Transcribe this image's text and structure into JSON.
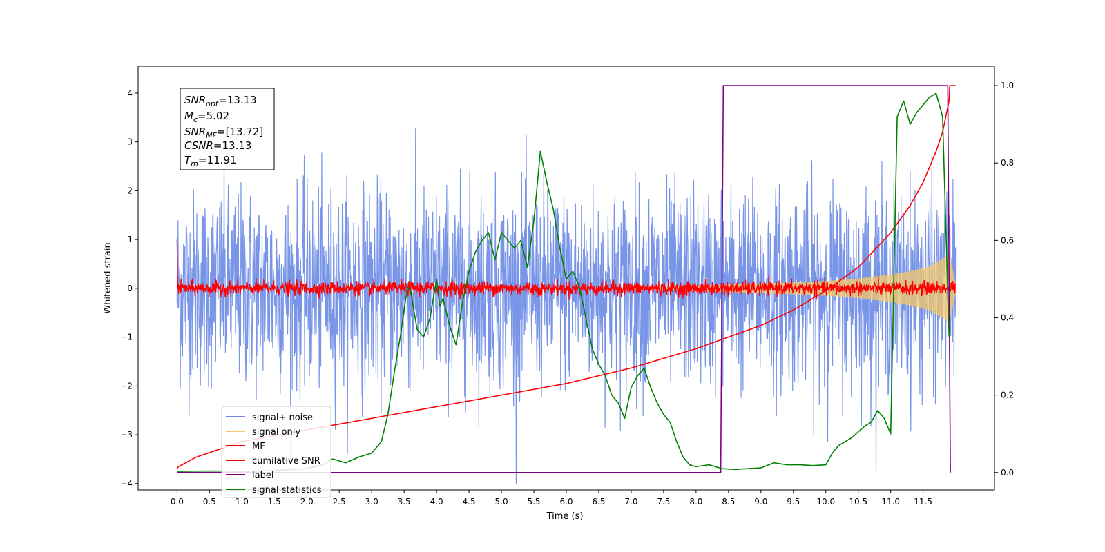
{
  "chart_data": {
    "type": "line",
    "xlabel": "Time (s)",
    "ylabel": "Whitened strain",
    "xlim": [
      -0.6,
      12.6
    ],
    "ylim": [
      -4.13,
      4.55
    ],
    "y2lim": [
      -0.045,
      1.05
    ],
    "x_ticks": [
      "0.0",
      "0.5",
      "1.0",
      "1.5",
      "2.0",
      "2.5",
      "3.0",
      "3.5",
      "4.0",
      "4.5",
      "5.0",
      "5.5",
      "6.0",
      "6.5",
      "7.0",
      "7.5",
      "8.0",
      "8.5",
      "9.0",
      "9.5",
      "10.0",
      "10.5",
      "11.0",
      "11.5"
    ],
    "y_ticks": [
      "4",
      "3",
      "2",
      "1",
      "0",
      "−1",
      "−2",
      "−3",
      "−4"
    ],
    "y2_ticks": [
      "1.0",
      "0.8",
      "0.6",
      "0.4",
      "0.2",
      "0.0"
    ],
    "info_box": {
      "snr_opt": {
        "main": "SNR",
        "sub": "opt",
        "value": "=13.13"
      },
      "mc": {
        "main": "M",
        "sub": "c",
        "value": "=5.02"
      },
      "snr_mf": {
        "main": "SNR",
        "sub": "MF",
        "value": "=[13.72]"
      },
      "csnr": {
        "main": "CSNR",
        "sub": "",
        "value": "=13.13"
      },
      "tm": {
        "main": "T",
        "sub": "m",
        "value": "=11.91"
      }
    },
    "legend": {
      "placement": "lower-left",
      "entries": [
        {
          "label": "signal+ noise",
          "color": "#6a8ae6"
        },
        {
          "label": "signal only",
          "color": "#f5c969"
        },
        {
          "label": "MF",
          "color": "#ff0000"
        },
        {
          "label": "cumilative SNR",
          "color": "#ff0000"
        },
        {
          "label": "label",
          "color": "#800080"
        },
        {
          "label": "signal statistics",
          "color": "#008000"
        }
      ]
    },
    "series": [
      {
        "name": "signal+ noise",
        "axis": "left",
        "color": "#6a8ae6",
        "note": "approximately Gaussian whitened noise, unit variance, sampled over 0.0–12.0 s",
        "x_range": [
          0.0,
          12.0
        ],
        "spread": 1.0
      },
      {
        "name": "signal only",
        "axis": "left",
        "color": "#f5c969",
        "note": "chirp envelope growing toward merger",
        "envelope_x": [
          7.5,
          8.0,
          8.5,
          9.0,
          9.5,
          10.0,
          10.5,
          11.0,
          11.3,
          11.6,
          11.8,
          11.9,
          11.95,
          12.0
        ],
        "envelope_y": [
          0.03,
          0.05,
          0.08,
          0.1,
          0.12,
          0.15,
          0.2,
          0.28,
          0.35,
          0.45,
          0.6,
          0.7,
          0.4,
          0.1
        ]
      },
      {
        "name": "MF",
        "axis": "left",
        "color": "#ff0000",
        "note": "matched-filter output, narrow band around 0",
        "x_range": [
          0.0,
          12.0
        ],
        "spread": 0.07
      },
      {
        "name": "cumilative SNR",
        "axis": "right",
        "color": "#ff0000",
        "x": [
          0.0,
          0.02,
          0.3,
          1.0,
          2.0,
          3.0,
          4.0,
          5.0,
          6.0,
          7.0,
          8.0,
          8.5,
          9.0,
          9.5,
          10.0,
          10.5,
          11.0,
          11.3,
          11.5,
          11.7,
          11.8,
          11.85,
          11.9,
          11.91,
          12.0
        ],
        "y": [
          0.01,
          0.015,
          0.04,
          0.08,
          0.11,
          0.14,
          0.17,
          0.2,
          0.23,
          0.27,
          0.32,
          0.35,
          0.38,
          0.42,
          0.47,
          0.53,
          0.62,
          0.69,
          0.75,
          0.83,
          0.88,
          0.92,
          0.96,
          1.0,
          1.0
        ]
      },
      {
        "name": "label",
        "axis": "right",
        "color": "#800080",
        "x": [
          0.0,
          8.38,
          8.42,
          11.88,
          11.92
        ],
        "y": [
          0.0,
          0.0,
          1.0,
          1.0,
          0.0
        ]
      },
      {
        "name": "signal statistics",
        "axis": "right",
        "color": "#008000",
        "x": [
          0.0,
          0.5,
          1.0,
          1.5,
          2.0,
          2.25,
          2.4,
          2.6,
          2.8,
          3.0,
          3.15,
          3.25,
          3.35,
          3.45,
          3.55,
          3.6,
          3.7,
          3.8,
          3.9,
          4.0,
          4.05,
          4.1,
          4.2,
          4.3,
          4.4,
          4.5,
          4.6,
          4.7,
          4.8,
          4.9,
          5.0,
          5.1,
          5.2,
          5.3,
          5.4,
          5.5,
          5.6,
          5.7,
          5.8,
          5.9,
          6.0,
          6.1,
          6.2,
          6.3,
          6.4,
          6.5,
          6.6,
          6.7,
          6.8,
          6.9,
          7.0,
          7.1,
          7.2,
          7.3,
          7.4,
          7.5,
          7.6,
          7.7,
          7.8,
          7.9,
          8.0,
          8.2,
          8.4,
          8.6,
          8.8,
          9.0,
          9.2,
          9.4,
          9.6,
          9.8,
          10.0,
          10.1,
          10.2,
          10.4,
          10.6,
          10.7,
          10.8,
          10.9,
          11.0,
          11.1,
          11.2,
          11.3,
          11.4,
          11.5,
          11.6,
          11.7,
          11.8,
          11.9
        ],
        "y": [
          0.003,
          0.004,
          0.003,
          0.005,
          0.01,
          0.02,
          0.035,
          0.025,
          0.04,
          0.05,
          0.08,
          0.15,
          0.26,
          0.36,
          0.48,
          0.47,
          0.37,
          0.35,
          0.4,
          0.5,
          0.43,
          0.45,
          0.38,
          0.33,
          0.44,
          0.52,
          0.57,
          0.6,
          0.62,
          0.55,
          0.62,
          0.6,
          0.58,
          0.6,
          0.53,
          0.65,
          0.83,
          0.75,
          0.68,
          0.58,
          0.5,
          0.52,
          0.48,
          0.4,
          0.32,
          0.28,
          0.25,
          0.2,
          0.18,
          0.14,
          0.22,
          0.25,
          0.27,
          0.22,
          0.18,
          0.15,
          0.13,
          0.08,
          0.04,
          0.02,
          0.015,
          0.02,
          0.01,
          0.008,
          0.01,
          0.012,
          0.025,
          0.02,
          0.02,
          0.018,
          0.02,
          0.05,
          0.07,
          0.09,
          0.12,
          0.13,
          0.16,
          0.14,
          0.1,
          0.92,
          0.96,
          0.9,
          0.93,
          0.95,
          0.97,
          0.98,
          0.92,
          0.35
        ]
      }
    ]
  }
}
